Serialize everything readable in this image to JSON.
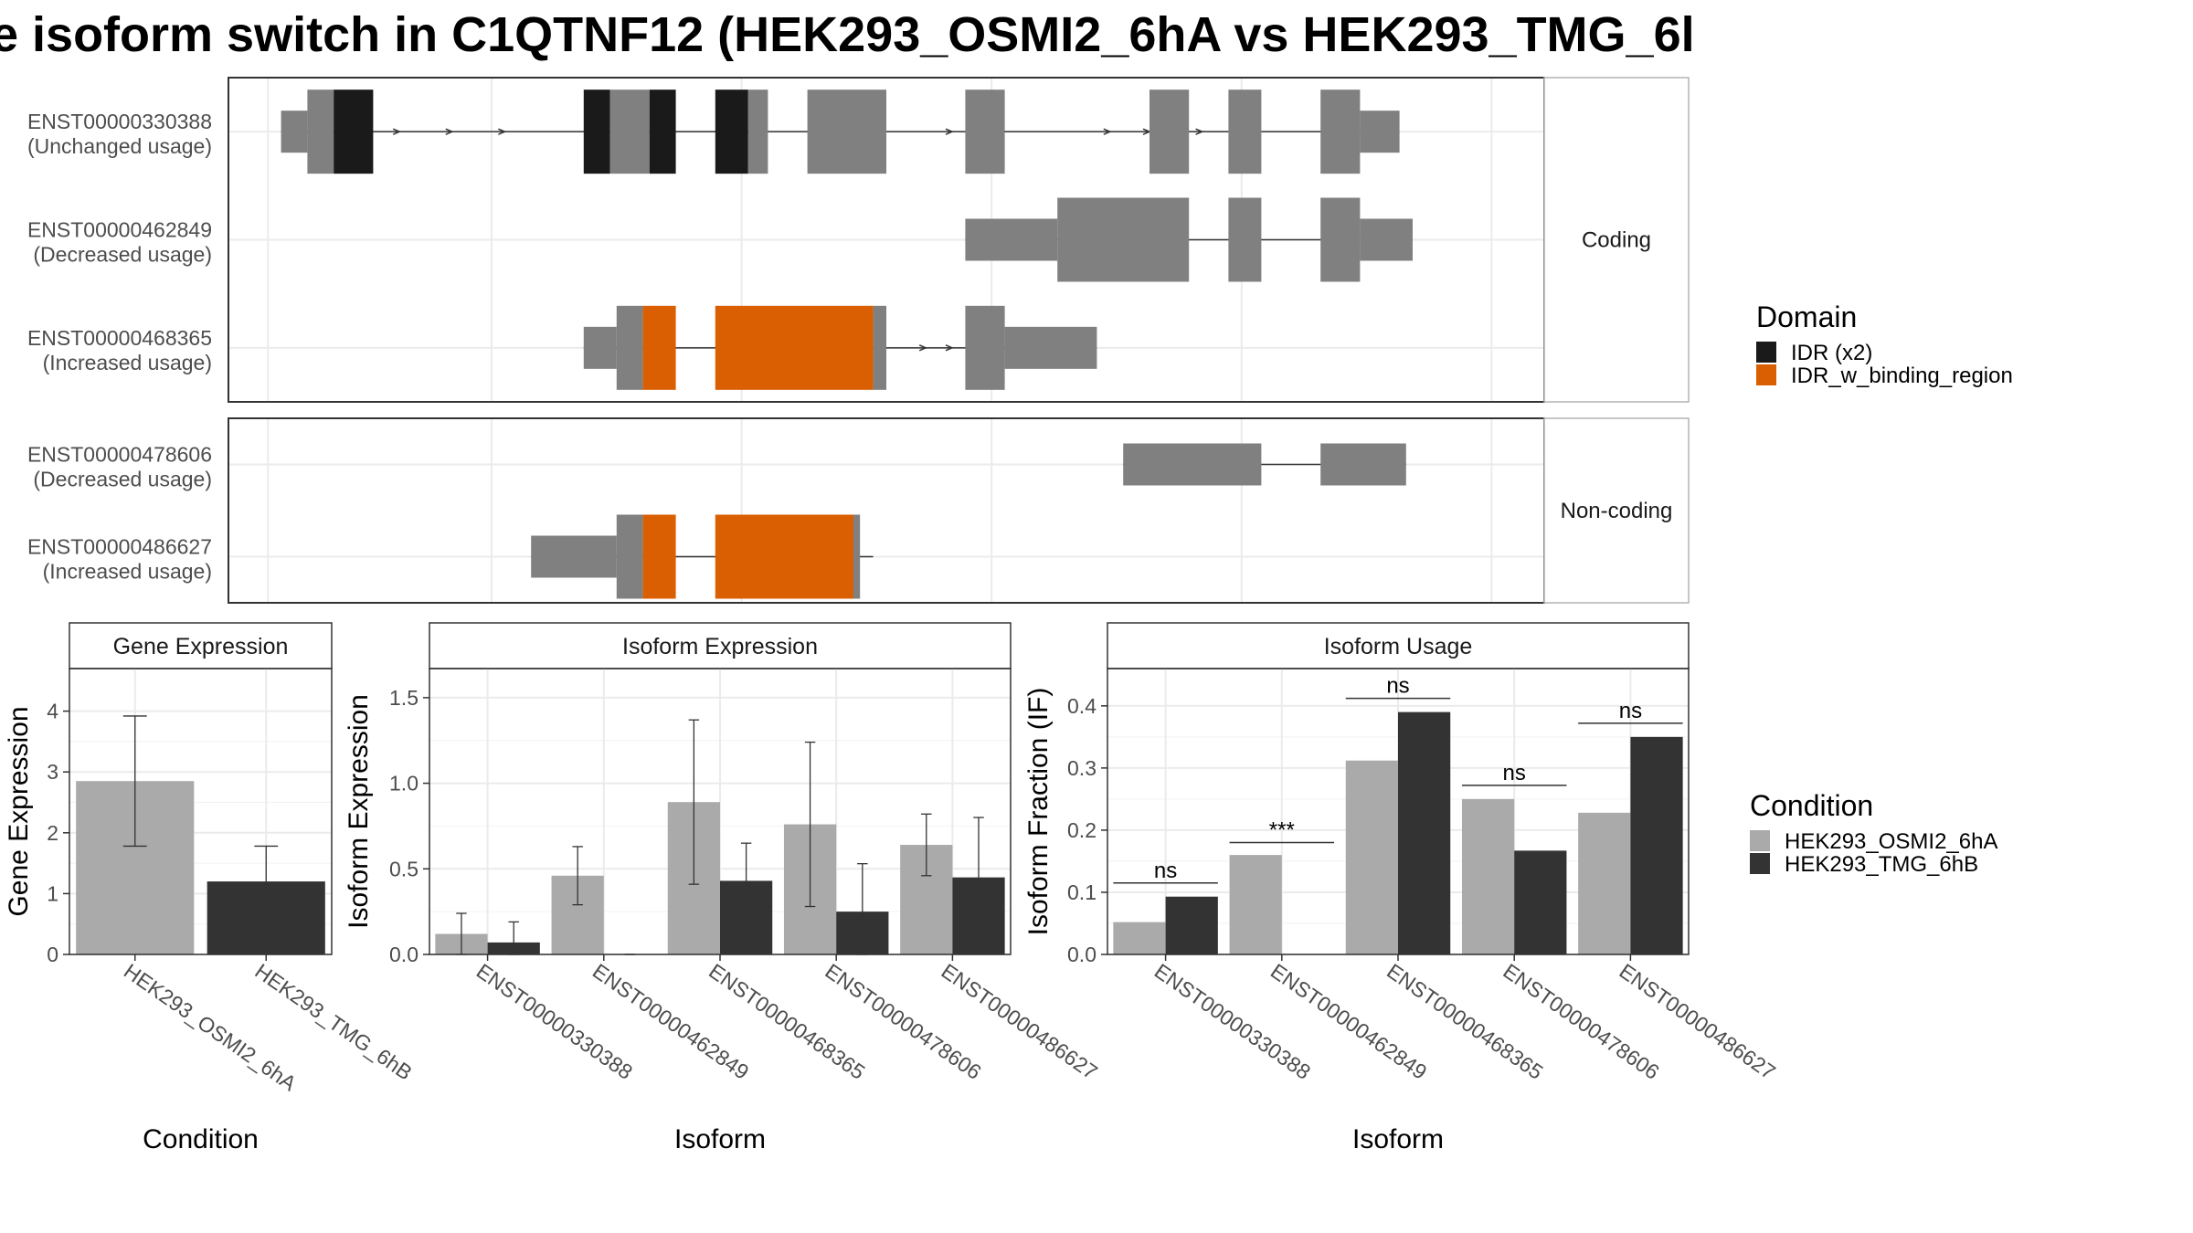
{
  "title": "e isoform switch in C1QTNF12 (HEK293_OSMI2_6hA vs HEK293_TMG_6l",
  "colors": {
    "exon": "#808080",
    "idr": "#1a1a1a",
    "idr_binding": "#d95f02",
    "cond_a": "#aaaaaa",
    "cond_b": "#333333",
    "grid": "#ebebeb"
  },
  "structure": {
    "sections": [
      {
        "label": "Coding",
        "transcripts": [
          {
            "id": "ENST00000330388",
            "usage": "(Unchanged usage)",
            "intron": [
              0.04,
              0.89
            ],
            "arrows": [
              0.13,
              0.17,
              0.21,
              0.55,
              0.59,
              0.67,
              0.7,
              0.74
            ],
            "exons": [
              [
                0.04,
                0.06,
                "thin"
              ],
              [
                0.06,
                0.08,
                "thick"
              ],
              [
                0.08,
                0.11,
                "thick",
                "idr"
              ],
              [
                0.27,
                0.29,
                "thick",
                "idr"
              ],
              [
                0.29,
                0.32,
                "thick"
              ],
              [
                0.32,
                0.34,
                "thick",
                "idr"
              ],
              [
                0.37,
                0.395,
                "thick",
                "idr"
              ],
              [
                0.395,
                0.41,
                "thick"
              ],
              [
                0.44,
                0.5,
                "thick"
              ],
              [
                0.56,
                0.59,
                "thick"
              ],
              [
                0.7,
                0.73,
                "thick"
              ],
              [
                0.76,
                0.785,
                "thick"
              ],
              [
                0.83,
                0.86,
                "thick"
              ],
              [
                0.86,
                0.89,
                "thin"
              ]
            ]
          },
          {
            "id": "ENST00000462849",
            "usage": "(Decreased usage)",
            "intron": [
              0.56,
              0.9
            ],
            "arrows": [],
            "exons": [
              [
                0.56,
                0.63,
                "thin"
              ],
              [
                0.63,
                0.73,
                "thick"
              ],
              [
                0.76,
                0.785,
                "thick"
              ],
              [
                0.83,
                0.86,
                "thick"
              ],
              [
                0.86,
                0.9,
                "thin"
              ]
            ]
          },
          {
            "id": "ENST00000468365",
            "usage": "(Increased usage)",
            "intron": [
              0.27,
              0.66
            ],
            "arrows": [
              0.53,
              0.55
            ],
            "exons": [
              [
                0.27,
                0.295,
                "thin"
              ],
              [
                0.295,
                0.315,
                "thick"
              ],
              [
                0.315,
                0.34,
                "thick",
                "bind"
              ],
              [
                0.37,
                0.49,
                "thick",
                "bind"
              ],
              [
                0.49,
                0.5,
                "thick"
              ],
              [
                0.56,
                0.59,
                "thick"
              ],
              [
                0.59,
                0.66,
                "thin"
              ]
            ]
          }
        ]
      },
      {
        "label": "Non-coding",
        "transcripts": [
          {
            "id": "ENST00000478606",
            "usage": "(Decreased usage)",
            "intron": [
              0.68,
              0.895
            ],
            "arrows": [],
            "exons": [
              [
                0.68,
                0.785,
                "thin"
              ],
              [
                0.83,
                0.895,
                "thin"
              ]
            ]
          },
          {
            "id": "ENST00000486627",
            "usage": "(Increased usage)",
            "intron": [
              0.23,
              0.49
            ],
            "arrows": [],
            "exons": [
              [
                0.23,
                0.295,
                "thin"
              ],
              [
                0.295,
                0.315,
                "thick"
              ],
              [
                0.315,
                0.34,
                "thick",
                "bind"
              ],
              [
                0.37,
                0.475,
                "thick",
                "bind"
              ],
              [
                0.475,
                0.48,
                "thick"
              ]
            ]
          }
        ]
      }
    ]
  },
  "domain_legend": {
    "title": "Domain",
    "items": [
      {
        "label": "IDR (x2)",
        "color": "#1a1a1a"
      },
      {
        "label": "IDR_w_binding_region",
        "color": "#d95f02"
      }
    ]
  },
  "condition_legend": {
    "title": "Condition",
    "items": [
      {
        "label": "HEK293_OSMI2_6hA",
        "color": "#aaaaaa"
      },
      {
        "label": "HEK293_TMG_6hB",
        "color": "#333333"
      }
    ]
  },
  "chart_data": [
    {
      "type": "bar",
      "title": "Gene Expression",
      "xlabel": "Condition",
      "ylabel": "Gene Expression",
      "ylim": [
        0,
        4.7
      ],
      "yticks": [
        0,
        1,
        2,
        3,
        4
      ],
      "ytick_labels": [
        "0",
        "1",
        "2",
        "3",
        "4"
      ],
      "categories": [
        "HEK293_OSMI2_6hA",
        "HEK293_TMG_6hB"
      ],
      "series": [
        {
          "values": [
            2.85,
            1.2
          ],
          "error_low": [
            1.78,
            0.6
          ],
          "error_high": [
            3.92,
            1.78
          ]
        }
      ],
      "colors": [
        "#aaaaaa",
        "#333333"
      ]
    },
    {
      "type": "bar",
      "title": "Isoform Expression",
      "xlabel": "Isoform",
      "ylabel": "Isoform Expression",
      "ylim": [
        0,
        1.67
      ],
      "yticks": [
        0,
        0.5,
        1.0,
        1.5
      ],
      "ytick_labels": [
        "0.0",
        "0.5",
        "1.0",
        "1.5"
      ],
      "categories": [
        "ENST00000330388",
        "ENST00000462849",
        "ENST00000468365",
        "ENST00000478606",
        "ENST00000486627"
      ],
      "series": [
        {
          "name": "HEK293_OSMI2_6hA",
          "values": [
            0.12,
            0.46,
            0.89,
            0.76,
            0.64
          ],
          "error_low": [
            0.0,
            0.29,
            0.41,
            0.28,
            0.46
          ],
          "error_high": [
            0.24,
            0.63,
            1.37,
            1.24,
            0.82
          ]
        },
        {
          "name": "HEK293_TMG_6hB",
          "values": [
            0.07,
            0.0,
            0.43,
            0.25,
            0.45
          ],
          "error_low": [
            0.0,
            0.0,
            0.21,
            0.0,
            0.1
          ],
          "error_high": [
            0.19,
            0.0,
            0.65,
            0.53,
            0.8
          ]
        }
      ]
    },
    {
      "type": "bar",
      "title": "Isoform Usage",
      "xlabel": "Isoform",
      "ylabel": "Isoform Fraction (IF)",
      "ylim": [
        0,
        0.46
      ],
      "yticks": [
        0,
        0.1,
        0.2,
        0.3,
        0.4
      ],
      "ytick_labels": [
        "0.0",
        "0.1",
        "0.2",
        "0.3",
        "0.4"
      ],
      "categories": [
        "ENST00000330388",
        "ENST00000462849",
        "ENST00000468365",
        "ENST00000478606",
        "ENST00000486627"
      ],
      "series": [
        {
          "name": "HEK293_OSMI2_6hA",
          "values": [
            0.052,
            0.16,
            0.312,
            0.25,
            0.228
          ]
        },
        {
          "name": "HEK293_TMG_6hB",
          "values": [
            0.093,
            0.0,
            0.39,
            0.167,
            0.35
          ]
        }
      ],
      "significance": [
        "ns",
        "***",
        "ns",
        "ns",
        "ns"
      ],
      "sig_y": [
        0.115,
        0.18,
        0.412,
        0.272,
        0.372
      ]
    }
  ]
}
